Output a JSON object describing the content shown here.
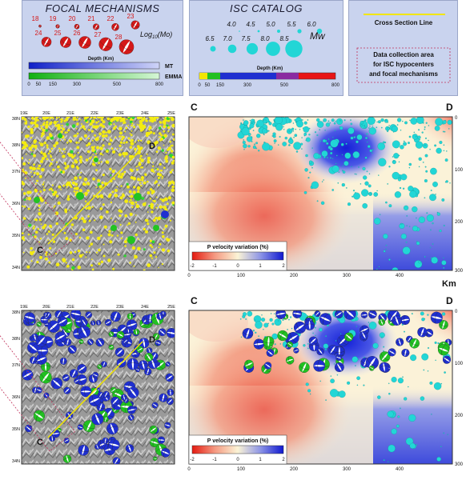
{
  "legend_focal": {
    "title": "FOCAL MECHANISMS",
    "magnitudes": [
      "18",
      "19",
      "20",
      "21",
      "22",
      "23",
      "24",
      "25",
      "26",
      "27",
      "28"
    ],
    "scale_label": "Log",
    "scale_sub": "10",
    "scale_suffix": "(Mo)",
    "depth_title": "Depth (Km)",
    "mt_label": "MT",
    "emma_label": "EMMA",
    "ticks": [
      "0",
      "50",
      "150",
      "300",
      "500",
      "800"
    ]
  },
  "legend_isc": {
    "title": "ISC CATALOG",
    "mags_row1": [
      "4.0",
      "4.5",
      "5.0",
      "5.5",
      "6.0"
    ],
    "mags_row2": [
      "6.5",
      "7.0",
      "7.5",
      "8.0",
      "8.5"
    ],
    "mw_label": "Mw",
    "depth_title": "Depth (Km)",
    "ticks": [
      "0",
      "50",
      "150",
      "300",
      "500",
      "800"
    ]
  },
  "legend_section": {
    "line_label": "Cross Section Line",
    "area_label_1": "Data collection area",
    "area_label_2": "for ISC hypocenters",
    "area_label_3": "and focal mechanisms"
  },
  "maps": {
    "lon_ticks": [
      "19E",
      "20E",
      "21E",
      "22E",
      "23E",
      "24E",
      "25E"
    ],
    "lat_ticks": [
      "38N",
      "38N",
      "37N",
      "36N",
      "35N",
      "34N"
    ],
    "point_c": "C",
    "point_d": "D"
  },
  "sections": {
    "left_label": "C",
    "right_label": "D",
    "x_ticks": [
      "0",
      "100",
      "200",
      "300",
      "400"
    ],
    "x_unit": "Km",
    "y_ticks": [
      "0",
      "100",
      "200",
      "300"
    ],
    "colorbar_title": "P velocity variation (%)",
    "colorbar_ticks": [
      "-2",
      "-1",
      "0",
      "1",
      "2"
    ]
  },
  "colors": {
    "panel_bg": "#c9d3ee",
    "section_line": "#f2e600",
    "hypocenter": "#22d6d6",
    "mt_blue": "#1f2fd0",
    "emma_green": "#28c228"
  }
}
